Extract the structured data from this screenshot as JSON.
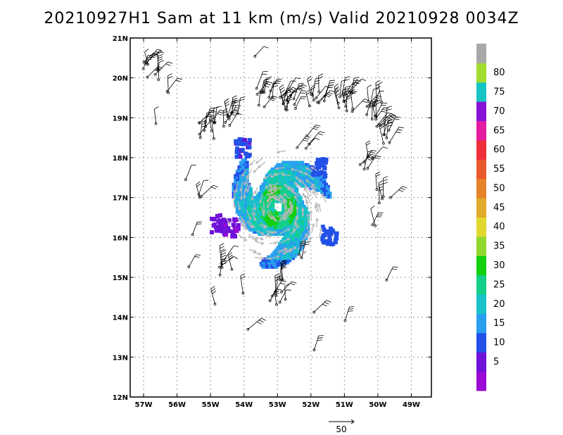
{
  "chart_data": {
    "type": "heatmap",
    "title": "20210927H1 Sam at 11 km (m/s) Valid 20210928 0034Z",
    "xlim": [
      -57.4,
      -48.4
    ],
    "ylim": [
      12,
      21
    ],
    "x_ticks": [
      {
        "value": -57,
        "label": "57W"
      },
      {
        "value": -56,
        "label": "56W"
      },
      {
        "value": -55,
        "label": "55W"
      },
      {
        "value": -54,
        "label": "54W"
      },
      {
        "value": -53,
        "label": "53W"
      },
      {
        "value": -52,
        "label": "52W"
      },
      {
        "value": -51,
        "label": "51W"
      },
      {
        "value": -50,
        "label": "50W"
      },
      {
        "value": -49,
        "label": "49W"
      }
    ],
    "y_ticks": [
      {
        "value": 12,
        "label": "12N"
      },
      {
        "value": 13,
        "label": "13N"
      },
      {
        "value": 14,
        "label": "14N"
      },
      {
        "value": 15,
        "label": "15N"
      },
      {
        "value": 16,
        "label": "16N"
      },
      {
        "value": 17,
        "label": "17N"
      },
      {
        "value": 18,
        "label": "18N"
      },
      {
        "value": 19,
        "label": "19N"
      },
      {
        "value": 20,
        "label": "20N"
      },
      {
        "value": 21,
        "label": "21N"
      }
    ],
    "grid": true,
    "colorbar": {
      "colors": [
        "#9b0bd6",
        "#6e12d9",
        "#2250e8",
        "#2a9ff0",
        "#17c2c8",
        "#14cf8a",
        "#13d010",
        "#90d82d",
        "#e1d82e",
        "#e0aa2b",
        "#e5822a",
        "#ea592c",
        "#ee2f3a",
        "#e41aa0",
        "#8812d6",
        "#17c4c4",
        "#a2dd2f",
        "#a8a8a8"
      ],
      "labels": [
        {
          "value": 5,
          "label": "5"
        },
        {
          "value": 10,
          "label": "10"
        },
        {
          "value": 15,
          "label": "15"
        },
        {
          "value": 20,
          "label": "20"
        },
        {
          "value": 25,
          "label": "25"
        },
        {
          "value": 30,
          "label": "30"
        },
        {
          "value": 35,
          "label": "35"
        },
        {
          "value": 40,
          "label": "40"
        },
        {
          "value": 45,
          "label": "45"
        },
        {
          "value": 50,
          "label": "50"
        },
        {
          "value": 55,
          "label": "55"
        },
        {
          "value": 60,
          "label": "60"
        },
        {
          "value": 65,
          "label": "65"
        },
        {
          "value": 70,
          "label": "70"
        },
        {
          "value": 75,
          "label": "75"
        },
        {
          "value": 80,
          "label": "80"
        }
      ]
    },
    "storm_center": {
      "lon": -53.0,
      "lat": 16.75
    },
    "reference_vector": {
      "label": "50",
      "value": 50
    },
    "wind_field_bands": [
      {
        "min_r": 0.0,
        "max_r": 0.25,
        "value": 26
      },
      {
        "min_r": 0.25,
        "max_r": 0.55,
        "value": 30
      },
      {
        "min_r": 0.55,
        "max_r": 0.95,
        "value": 22
      },
      {
        "min_r": 0.95,
        "max_r": 1.35,
        "value": 17
      },
      {
        "min_r": 1.35,
        "max_r": 1.7,
        "value": 12
      }
    ],
    "features": [
      {
        "lon": -54.8,
        "lat": 16.4,
        "value": 7
      },
      {
        "lon": -54.45,
        "lat": 16.3,
        "value": 6
      },
      {
        "lon": -54.1,
        "lat": 18.3,
        "value": 11
      },
      {
        "lon": -51.5,
        "lat": 16.1,
        "value": 12
      },
      {
        "lon": -51.8,
        "lat": 17.8,
        "value": 13
      }
    ],
    "barb_clusters": [
      {
        "lon": -56.8,
        "lat": 20.2,
        "n": 10
      },
      {
        "lon": -56.3,
        "lat": 19.6,
        "n": 2
      },
      {
        "lon": -56.7,
        "lat": 18.9,
        "n": 1
      },
      {
        "lon": -55.3,
        "lat": 17.0,
        "n": 3
      },
      {
        "lon": -55.8,
        "lat": 17.4,
        "n": 1
      },
      {
        "lon": -55.5,
        "lat": 16.0,
        "n": 1
      },
      {
        "lon": -55.7,
        "lat": 15.2,
        "n": 1
      },
      {
        "lon": -54.6,
        "lat": 15.2,
        "n": 6
      },
      {
        "lon": -54.9,
        "lat": 14.3,
        "n": 1
      },
      {
        "lon": -54.0,
        "lat": 14.6,
        "n": 1
      },
      {
        "lon": -53.9,
        "lat": 13.7,
        "n": 1
      },
      {
        "lon": -53.0,
        "lat": 14.5,
        "n": 8
      },
      {
        "lon": -52.9,
        "lat": 15.0,
        "n": 3
      },
      {
        "lon": -52.3,
        "lat": 15.5,
        "n": 2
      },
      {
        "lon": -51.9,
        "lat": 13.2,
        "n": 1
      },
      {
        "lon": -51.9,
        "lat": 14.1,
        "n": 1
      },
      {
        "lon": -51.0,
        "lat": 13.9,
        "n": 1
      },
      {
        "lon": -49.8,
        "lat": 15.0,
        "n": 1
      },
      {
        "lon": -50.1,
        "lat": 16.3,
        "n": 2
      },
      {
        "lon": -49.8,
        "lat": 17.0,
        "n": 5
      },
      {
        "lon": -50.4,
        "lat": 17.8,
        "n": 6
      },
      {
        "lon": -49.9,
        "lat": 18.6,
        "n": 10
      },
      {
        "lon": -50.1,
        "lat": 19.2,
        "n": 12
      },
      {
        "lon": -51.0,
        "lat": 19.4,
        "n": 14
      },
      {
        "lon": -51.8,
        "lat": 19.5,
        "n": 10
      },
      {
        "lon": -52.7,
        "lat": 19.4,
        "n": 14
      },
      {
        "lon": -53.4,
        "lat": 19.5,
        "n": 10
      },
      {
        "lon": -54.4,
        "lat": 18.9,
        "n": 10
      },
      {
        "lon": -55.1,
        "lat": 18.7,
        "n": 12
      },
      {
        "lon": -53.6,
        "lat": 20.5,
        "n": 1
      },
      {
        "lon": -52.3,
        "lat": 18.3,
        "n": 4
      }
    ]
  }
}
